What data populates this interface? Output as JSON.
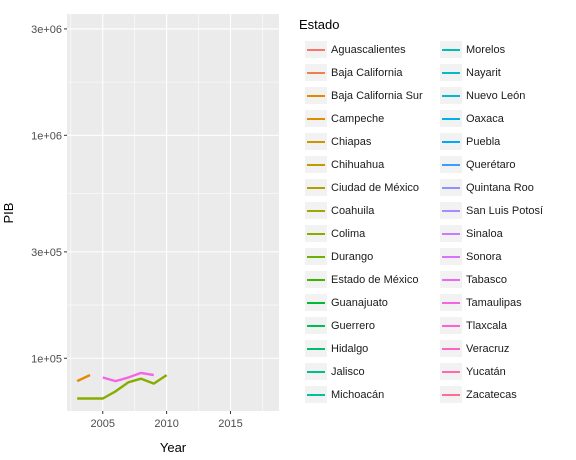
{
  "chart_data": {
    "type": "line",
    "title": "",
    "xlabel": "Year",
    "ylabel": "PIB",
    "y_scale": "log",
    "xlim": [
      2002.2,
      2018.8
    ],
    "ylim": [
      58000,
      3500000
    ],
    "x_ticks": [
      2005,
      2010,
      2015
    ],
    "y_ticks": [
      {
        "value": 3000000,
        "label": "3e+06"
      },
      {
        "value": 1000000,
        "label": "1e+06"
      },
      {
        "value": 300000,
        "label": "3e+05"
      },
      {
        "value": 100000,
        "label": "1e+05"
      }
    ],
    "grid": true,
    "legend_position": "right",
    "legend_title": "Estado",
    "legend": [
      {
        "label": "Aguascalientes",
        "color": "#F8766D"
      },
      {
        "label": "Baja California",
        "color": "#F07E4F"
      },
      {
        "label": "Baja California Sur",
        "color": "#E58700"
      },
      {
        "label": "Campeche",
        "color": "#DA8E00"
      },
      {
        "label": "Chiapas",
        "color": "#CD9600"
      },
      {
        "label": "Chihuahua",
        "color": "#C09B00"
      },
      {
        "label": "Ciudad de México",
        "color": "#B0A100"
      },
      {
        "label": "Coahuila",
        "color": "#9FA700"
      },
      {
        "label": "Colima",
        "color": "#89AC00"
      },
      {
        "label": "Durango",
        "color": "#6BB100"
      },
      {
        "label": "Estado de México",
        "color": "#3BB500"
      },
      {
        "label": "Guanajuato",
        "color": "#00B934"
      },
      {
        "label": "Guerrero",
        "color": "#00BC55"
      },
      {
        "label": "Hidalgo",
        "color": "#00BE6E"
      },
      {
        "label": "Jalisco",
        "color": "#00C087"
      },
      {
        "label": "Michoacán",
        "color": "#00C19C"
      },
      {
        "label": "Morelos",
        "color": "#00BFB2"
      },
      {
        "label": "Nayarit",
        "color": "#00BCC4"
      },
      {
        "label": "Nuevo León",
        "color": "#00B8D7"
      },
      {
        "label": "Oaxaca",
        "color": "#00B1E8"
      },
      {
        "label": "Puebla",
        "color": "#00A8F6"
      },
      {
        "label": "Querétaro",
        "color": "#3A9DFF"
      },
      {
        "label": "Quintana Roo",
        "color": "#8F91FF"
      },
      {
        "label": "San Luis Potosí",
        "color": "#A98AFF"
      },
      {
        "label": "Sinaloa",
        "color": "#C77CFF"
      },
      {
        "label": "Sonora",
        "color": "#DB72FB"
      },
      {
        "label": "Tabasco",
        "color": "#E96AF0"
      },
      {
        "label": "Tamaulipas",
        "color": "#F564E3"
      },
      {
        "label": "Tlaxcala",
        "color": "#FC61D5"
      },
      {
        "label": "Veracruz",
        "color": "#FF63C3"
      },
      {
        "label": "Yucatán",
        "color": "#FF67AE"
      },
      {
        "label": "Zacatecas",
        "color": "#FF6C91"
      }
    ],
    "series": [
      {
        "name": "Baja California Sur",
        "color": "#E58700",
        "points": [
          [
            2003,
            79000
          ],
          [
            2004,
            84000
          ]
        ]
      },
      {
        "name": "Colima",
        "color": "#89AC00",
        "points": [
          [
            2003,
            66000
          ],
          [
            2004,
            66000
          ],
          [
            2005,
            66000
          ],
          [
            2006,
            71000
          ],
          [
            2007,
            78000
          ],
          [
            2008,
            81000
          ],
          [
            2009,
            77000
          ],
          [
            2010,
            84000
          ]
        ]
      },
      {
        "name": "Tamaulipas",
        "color": "#F564E3",
        "points": [
          [
            2005,
            82000
          ],
          [
            2006,
            79000
          ],
          [
            2007,
            82000
          ],
          [
            2008,
            86000
          ],
          [
            2009,
            84000
          ]
        ]
      }
    ]
  }
}
